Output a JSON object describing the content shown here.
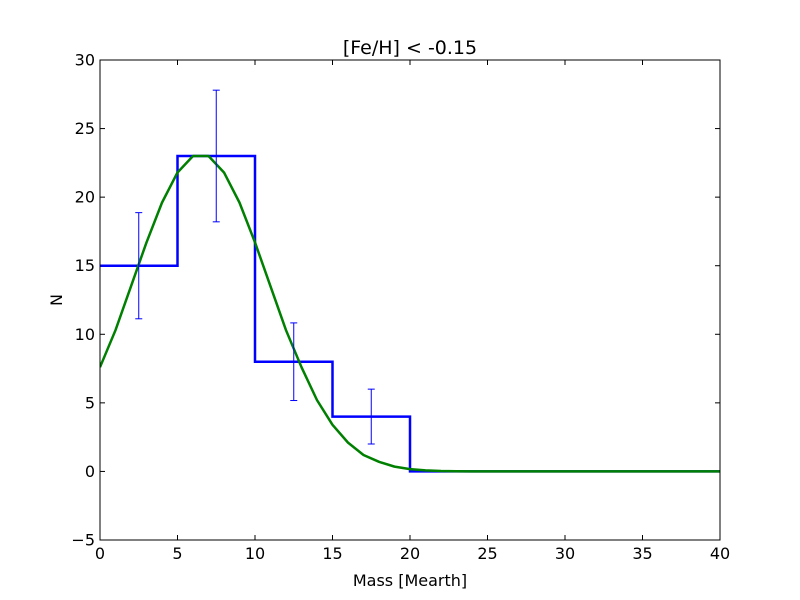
{
  "chart_data": {
    "type": "line",
    "title": "[Fe/H] < -0.15",
    "xlabel": "Mass [Mearth]",
    "ylabel": "N",
    "xlim": [
      0,
      40
    ],
    "ylim": [
      -5,
      30
    ],
    "xticks": [
      0,
      5,
      10,
      15,
      20,
      25,
      30,
      35,
      40
    ],
    "yticks": [
      -5,
      0,
      5,
      10,
      15,
      20,
      25,
      30
    ],
    "xtick_labels": [
      "0",
      "5",
      "10",
      "15",
      "20",
      "25",
      "30",
      "35",
      "40"
    ],
    "ytick_labels": [
      "−5",
      "0",
      "5",
      "10",
      "15",
      "20",
      "25",
      "30"
    ],
    "grid": false,
    "colors": {
      "histogram": "#0000ff",
      "fit": "#008000",
      "errorbar": "#0000ff"
    },
    "series": [
      {
        "kind": "step-histogram",
        "bin_edges": [
          0,
          5,
          10,
          15,
          20,
          25,
          30,
          35,
          40
        ],
        "counts": [
          15,
          23,
          8,
          4,
          0,
          0,
          0,
          0
        ]
      },
      {
        "kind": "curve",
        "x": [
          0,
          1,
          2,
          3,
          4,
          5,
          6,
          7,
          8,
          9,
          10,
          11,
          12,
          13,
          14,
          15,
          16,
          17,
          18,
          19,
          20,
          21,
          22,
          23,
          24,
          26,
          28,
          30,
          32,
          34,
          36,
          38,
          40
        ],
        "y": [
          7.6,
          10.3,
          13.5,
          16.7,
          19.6,
          21.8,
          23.0,
          23.0,
          21.8,
          19.6,
          16.7,
          13.5,
          10.3,
          7.6,
          5.2,
          3.4,
          2.1,
          1.2,
          0.7,
          0.35,
          0.17,
          0.08,
          0.03,
          0.01,
          0.0,
          0.0,
          0.0,
          0.0,
          0.0,
          0.0,
          0.0,
          0.0,
          0.0
        ]
      },
      {
        "kind": "errorbars",
        "x": [
          2.5,
          7.5,
          12.5,
          17.5
        ],
        "y": [
          15,
          23,
          8,
          4
        ],
        "yerr": [
          3.87,
          4.8,
          2.83,
          2.0
        ]
      }
    ]
  }
}
